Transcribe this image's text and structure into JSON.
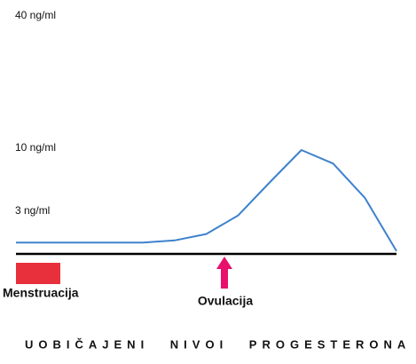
{
  "chart_data": {
    "type": "line",
    "title": "UOBIČAJENI NIVOI PROGESTERONA",
    "categories": [
      null,
      null,
      null,
      null,
      null,
      null,
      null,
      null,
      null,
      null,
      null,
      null,
      null
    ],
    "series": [
      {
        "name": null,
        "color": "#3d82cc",
        "values": [
          0.8,
          0.8,
          0.8,
          0.8,
          0.8,
          0.95,
          1.4,
          2.7,
          6.2,
          9.8,
          8.3,
          4.5,
          0.2
        ]
      }
    ],
    "ylim": [
      0,
      40
    ],
    "yticks": [
      {
        "value": 3,
        "label": "3 ng/ml"
      },
      {
        "value": 10,
        "label": "10 ng/ml"
      },
      {
        "value": 40,
        "label": "40 ng/ml"
      }
    ],
    "grid": false,
    "annotations": [
      "Menstruacija",
      "Ovulacija"
    ]
  }
}
